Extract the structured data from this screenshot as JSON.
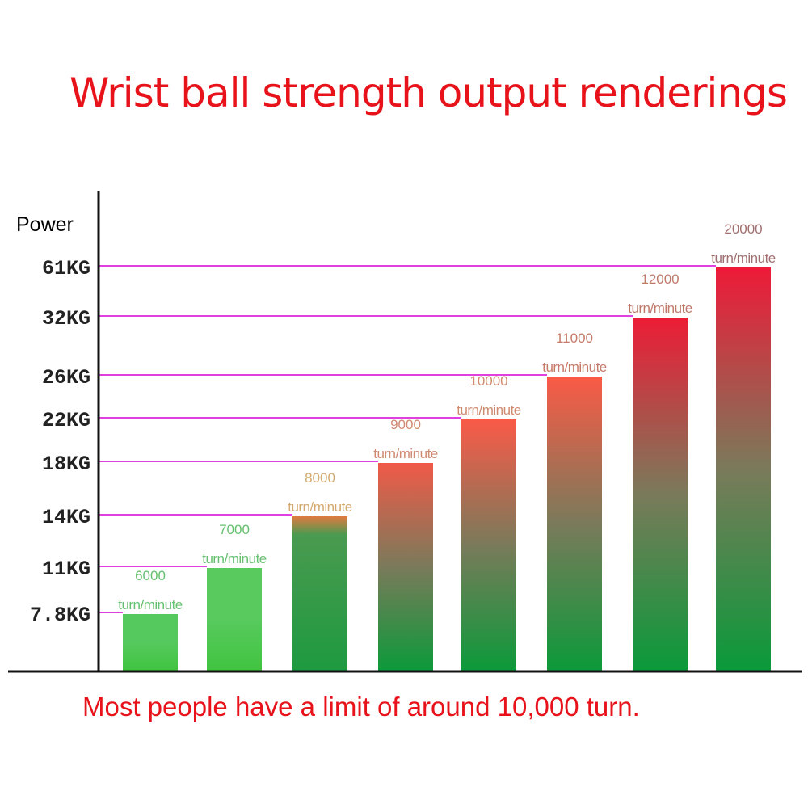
{
  "chart_data": {
    "type": "bar",
    "title": "Wrist ball strength output renderings",
    "ylabel": "Power",
    "footnote": "Most people have a limit of around 10,000 turn.",
    "y_scale": "categorical (non-linear)",
    "y_ticks": [
      "7.8KG",
      "11KG",
      "14KG",
      "18KG",
      "22KG",
      "26KG",
      "32KG",
      "61KG"
    ],
    "categories": [
      "6000",
      "7000",
      "8000",
      "9000",
      "10000",
      "11000",
      "12000",
      "20000"
    ],
    "unit_label": "turn/minute",
    "values_kg": [
      7.8,
      11,
      14,
      18,
      22,
      26,
      32,
      61
    ],
    "grid": "magenta guide lines from axis to each bar top",
    "colors": {
      "title": "#e8121a",
      "guide_line": "#e040e0",
      "bar_low": "#4cc454",
      "bar_high_top": "#e8203a",
      "bar_bottom": "#0a9a3a"
    }
  }
}
